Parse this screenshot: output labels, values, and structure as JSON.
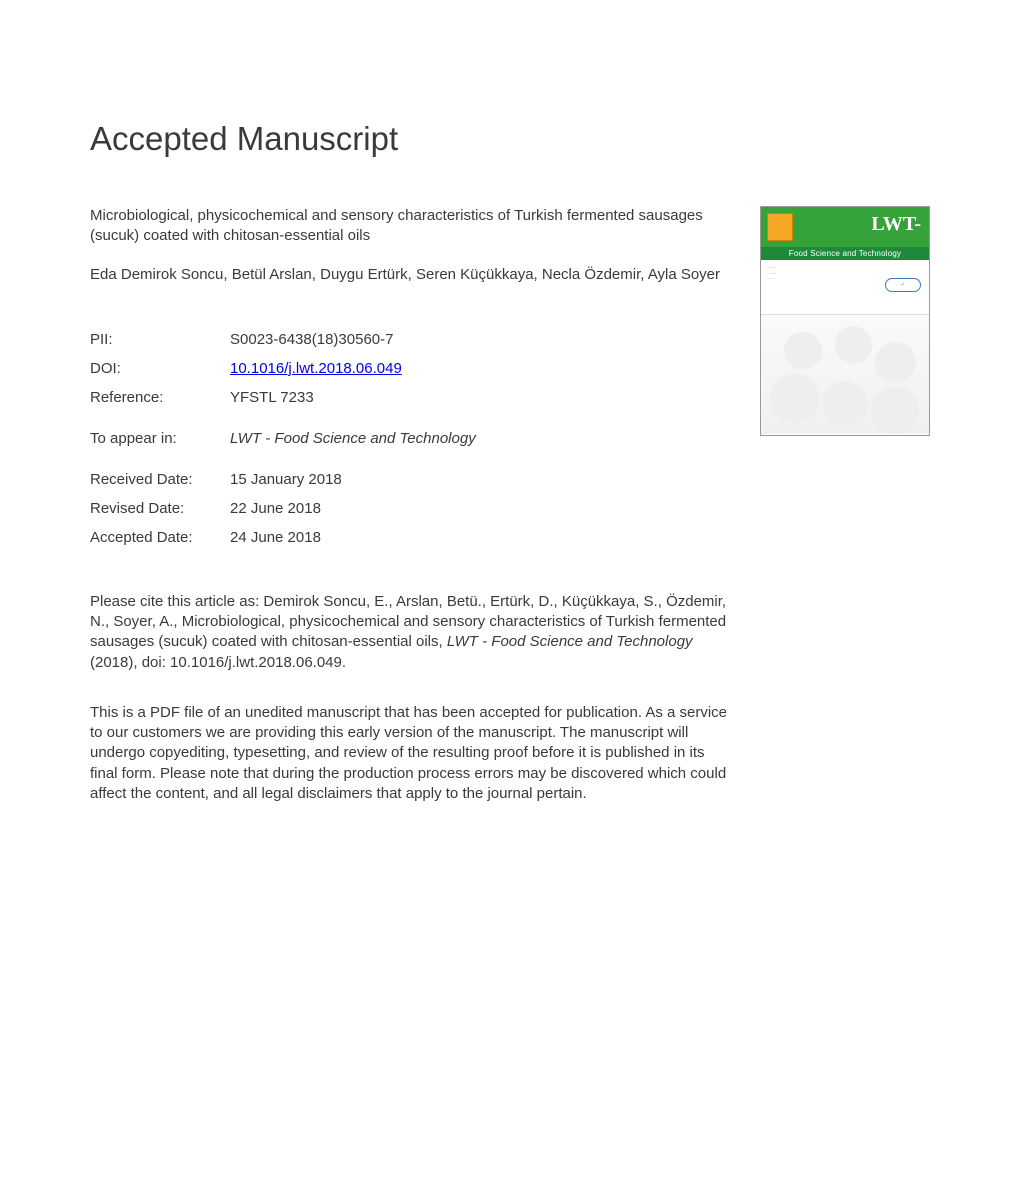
{
  "heading": "Accepted Manuscript",
  "article": {
    "title": "Microbiological, physicochemical and sensory characteristics of Turkish fermented sausages (sucuk) coated with chitosan-essential oils",
    "authors": "Eda Demirok Soncu, Betül Arslan, Duygu Ertürk, Seren Küçükkaya, Necla Özdemir, Ayla Soyer"
  },
  "meta": {
    "pii_label": "PII:",
    "pii_value": "S0023-6438(18)30560-7",
    "doi_label": "DOI:",
    "doi_value": "10.1016/j.lwt.2018.06.049",
    "reference_label": "Reference:",
    "reference_value": "YFSTL 7233",
    "appear_label": "To appear in:",
    "appear_value": "LWT - Food Science and Technology",
    "received_label": "Received Date:",
    "received_value": "15 January 2018",
    "revised_label": "Revised Date:",
    "revised_value": "22 June 2018",
    "accepted_label": "Accepted Date:",
    "accepted_value": "24 June 2018"
  },
  "citation": {
    "prefix": "Please cite this article as: Demirok Soncu, E., Arslan, Betü., Ertürk, D., Küçükkaya, S., Özdemir, N., Soyer, A., Microbiological, physicochemical and sensory characteristics of Turkish fermented sausages (sucuk) coated with chitosan-essential oils, ",
    "journal": "LWT - Food Science and Technology",
    "suffix": " (2018), doi: 10.1016/j.lwt.2018.06.049."
  },
  "disclaimer": "This is a PDF file of an unedited manuscript that has been accepted for publication. As a service to our customers we are providing this early version of the manuscript. The manuscript will undergo copyediting, typesetting, and review of the resulting proof before it is published in its final form. Please note that during the production process errors may be discovered which could affect the content, and all legal disclaimers that apply to the journal pertain.",
  "cover": {
    "journal_abbrev": "LWT-",
    "banner_text": "Food Science and Technology"
  }
}
